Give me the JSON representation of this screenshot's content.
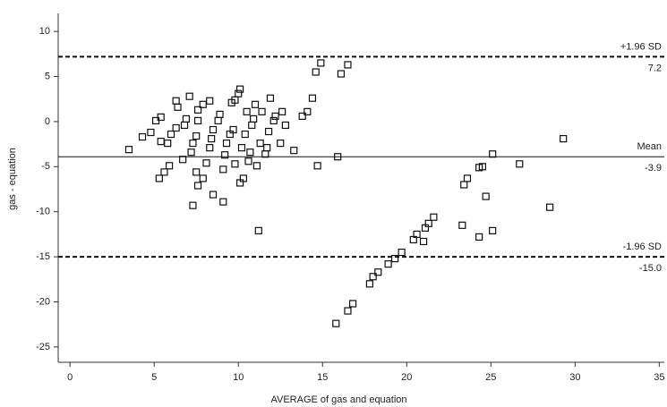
{
  "chart_data": {
    "type": "scatter",
    "x_label": "AVERAGE of gas and equation",
    "y_label": "gas - equation",
    "xlim": [
      -0.7,
      35.3
    ],
    "ylim": [
      -26.7,
      12
    ],
    "xticks": [
      0,
      5,
      10,
      15,
      20,
      25,
      30,
      35
    ],
    "yticks": [
      -25,
      -20,
      -15,
      -10,
      -5,
      0,
      5,
      10
    ],
    "grid": false,
    "marker": "square",
    "series": [
      {
        "color": "#111111",
        "x": [
          3.5,
          4.3,
          4.8,
          5.1,
          5.4,
          5.4,
          5.3,
          5.6,
          5.9,
          5.8,
          6.0,
          6.3,
          6.3,
          6.4,
          6.7,
          6.8,
          6.9,
          7.1,
          7.2,
          7.3,
          7.5,
          7.5,
          7.6,
          7.3,
          7.6,
          7.6,
          7.9,
          7.9,
          8.1,
          8.3,
          8.3,
          8.4,
          8.5,
          8.5,
          8.8,
          8.9,
          9.1,
          9.1,
          9.2,
          9.3,
          9.5,
          9.6,
          9.7,
          9.8,
          9.8,
          10.0,
          10.1,
          10.1,
          10.3,
          10.2,
          10.4,
          10.5,
          10.6,
          10.7,
          10.8,
          10.9,
          11.0,
          11.2,
          11.1,
          11.3,
          11.4,
          11.6,
          11.7,
          11.8,
          11.9,
          12.1,
          12.2,
          12.5,
          12.6,
          12.8,
          13.3,
          13.8,
          14.1,
          14.4,
          14.6,
          14.7,
          14.9,
          15.9,
          16.1,
          16.5,
          15.8,
          16.5,
          16.8,
          17.8,
          18.0,
          18.3,
          18.9,
          19.3,
          19.7,
          20.4,
          20.6,
          21.1,
          21.3,
          21.6,
          21.0,
          23.3,
          23.4,
          23.6,
          24.3,
          24.5,
          24.7,
          24.3,
          25.1,
          25.1,
          26.7,
          28.5,
          29.3
        ],
        "values": [
          -3.1,
          -1.7,
          -1.2,
          0.1,
          0.5,
          -2.2,
          -6.3,
          -5.6,
          -4.9,
          -2.4,
          -1.4,
          -0.7,
          2.3,
          1.6,
          -4.2,
          -0.4,
          0.3,
          2.8,
          -3.4,
          -2.4,
          -1.6,
          -5.6,
          -7.1,
          -9.3,
          1.3,
          0.1,
          1.9,
          -6.3,
          -4.6,
          -2.9,
          2.3,
          -1.9,
          -0.9,
          -8.1,
          0.1,
          0.8,
          -8.9,
          -5.3,
          -3.7,
          -2.4,
          -1.4,
          2.1,
          -0.9,
          2.4,
          -4.7,
          3.1,
          3.6,
          -6.8,
          -6.3,
          -2.9,
          -1.4,
          1.1,
          -4.4,
          -3.4,
          -0.4,
          0.3,
          1.9,
          -12.1,
          -4.9,
          -2.4,
          1.1,
          -3.6,
          -2.9,
          -1.1,
          2.6,
          0.1,
          0.6,
          -2.4,
          1.1,
          -0.4,
          -3.2,
          0.6,
          1.1,
          2.6,
          5.5,
          -4.9,
          6.5,
          -3.9,
          5.3,
          6.3,
          -22.4,
          -21.0,
          -20.2,
          -18.0,
          -17.2,
          -16.7,
          -15.8,
          -15.2,
          -14.5,
          -13.1,
          -12.5,
          -11.8,
          -11.3,
          -10.6,
          -13.3,
          -11.5,
          -7.0,
          -6.3,
          -5.1,
          -5.0,
          -8.3,
          -12.8,
          -12.1,
          -3.6,
          -4.7,
          -9.5,
          -1.9
        ]
      }
    ],
    "reference_lines": [
      {
        "name": "+1.96 SD",
        "value": 7.2,
        "style": "dashed"
      },
      {
        "name": "Mean",
        "value": -3.9,
        "style": "solid"
      },
      {
        "name": "-1.96 SD",
        "value": -15,
        "value_label": "-15.0",
        "style": "dashed"
      }
    ]
  }
}
